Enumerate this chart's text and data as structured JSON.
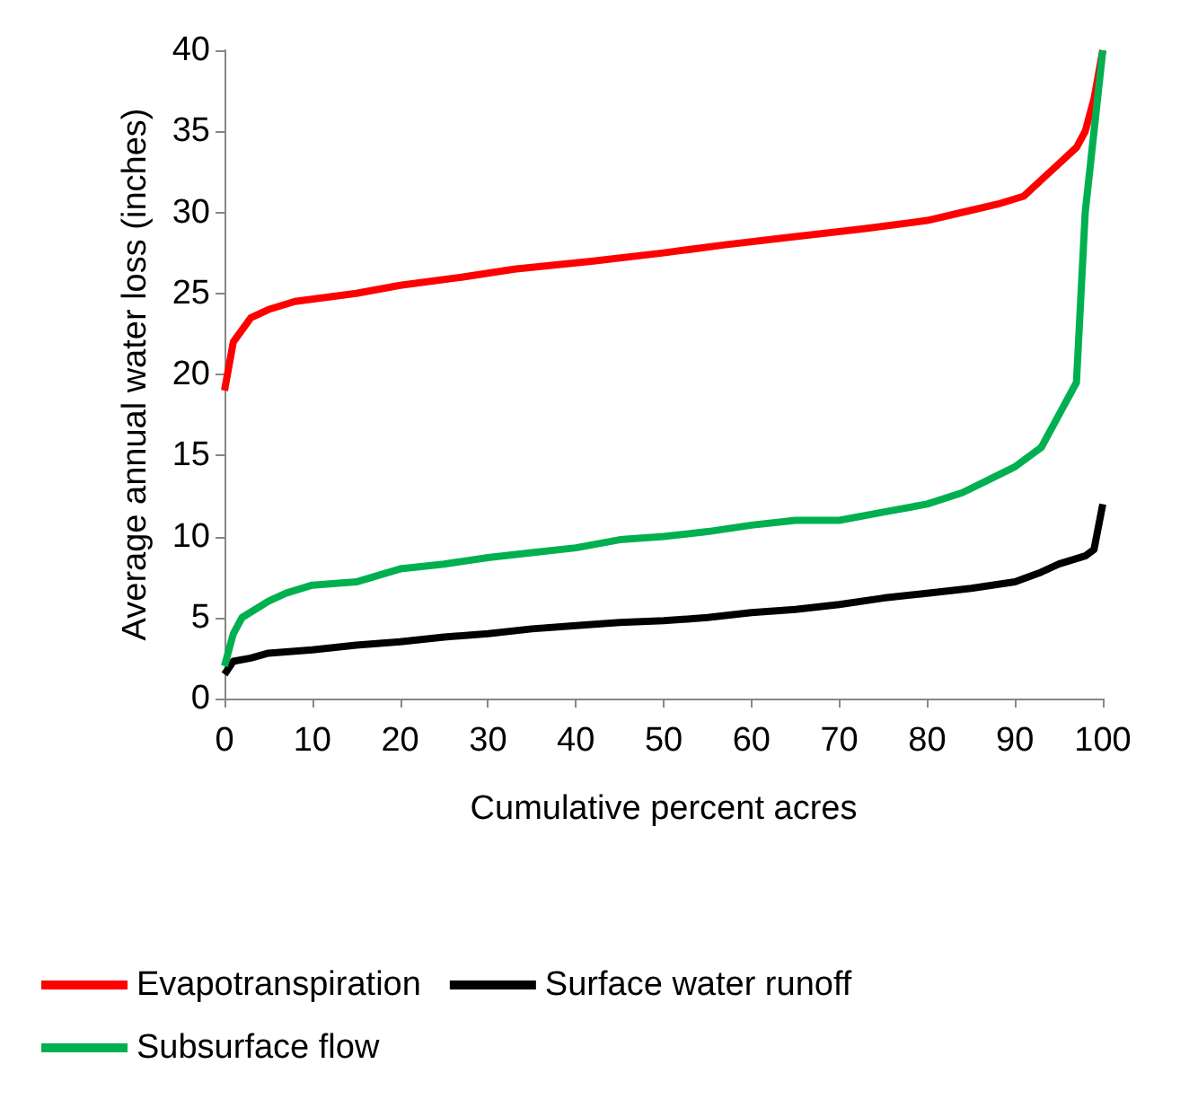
{
  "chart_data": {
    "type": "line",
    "xlabel": "Cumulative percent acres",
    "ylabel": "Average annual water loss (inches)",
    "xlim": [
      0,
      100
    ],
    "xticks": [
      0,
      10,
      20,
      30,
      40,
      50,
      60,
      70,
      80,
      90,
      100
    ],
    "ylim": [
      0,
      40
    ],
    "yticks": [
      0,
      5,
      10,
      15,
      20,
      25,
      30,
      35,
      40
    ],
    "grid": false,
    "legend": "bottom",
    "marker": "none",
    "series": [
      {
        "name": "Evapotranspiration",
        "color": "#ff0000",
        "x": [
          0,
          1,
          3,
          5,
          8,
          15,
          20,
          27,
          33,
          42,
          50,
          57,
          65,
          73,
          80,
          84,
          88,
          91,
          93,
          95,
          97,
          98,
          99,
          100
        ],
        "values": [
          19,
          22,
          23.5,
          24,
          24.5,
          25,
          25.5,
          26,
          26.5,
          27,
          27.5,
          28,
          28.5,
          29,
          29.5,
          30,
          30.5,
          31,
          32,
          33,
          34,
          35,
          37,
          40
        ]
      },
      {
        "name": "Surface water runoff",
        "color": "#000000",
        "x": [
          0,
          1,
          3,
          5,
          10,
          15,
          20,
          25,
          30,
          35,
          40,
          45,
          50,
          55,
          60,
          65,
          70,
          75,
          80,
          85,
          90,
          93,
          95,
          98,
          99,
          100
        ],
        "values": [
          1.5,
          2.3,
          2.5,
          2.8,
          3,
          3.3,
          3.5,
          3.8,
          4,
          4.3,
          4.5,
          4.7,
          4.8,
          5,
          5.3,
          5.5,
          5.8,
          6.2,
          6.5,
          6.8,
          7.2,
          7.8,
          8.3,
          8.8,
          9.2,
          12
        ]
      },
      {
        "name": "Subsurface flow",
        "color": "#00b050",
        "x": [
          0,
          1,
          2,
          5,
          7,
          10,
          15,
          20,
          25,
          30,
          35,
          40,
          45,
          50,
          55,
          60,
          65,
          70,
          75,
          80,
          84,
          87,
          90,
          93,
          95,
          97,
          98,
          100
        ],
        "values": [
          2,
          4,
          5,
          6,
          6.5,
          7,
          7.2,
          8,
          8.3,
          8.7,
          9,
          9.3,
          9.8,
          10,
          10.3,
          10.7,
          11,
          11,
          11.5,
          12,
          12.7,
          13.5,
          14.3,
          15.5,
          17.5,
          19.5,
          30,
          40
        ]
      }
    ]
  }
}
